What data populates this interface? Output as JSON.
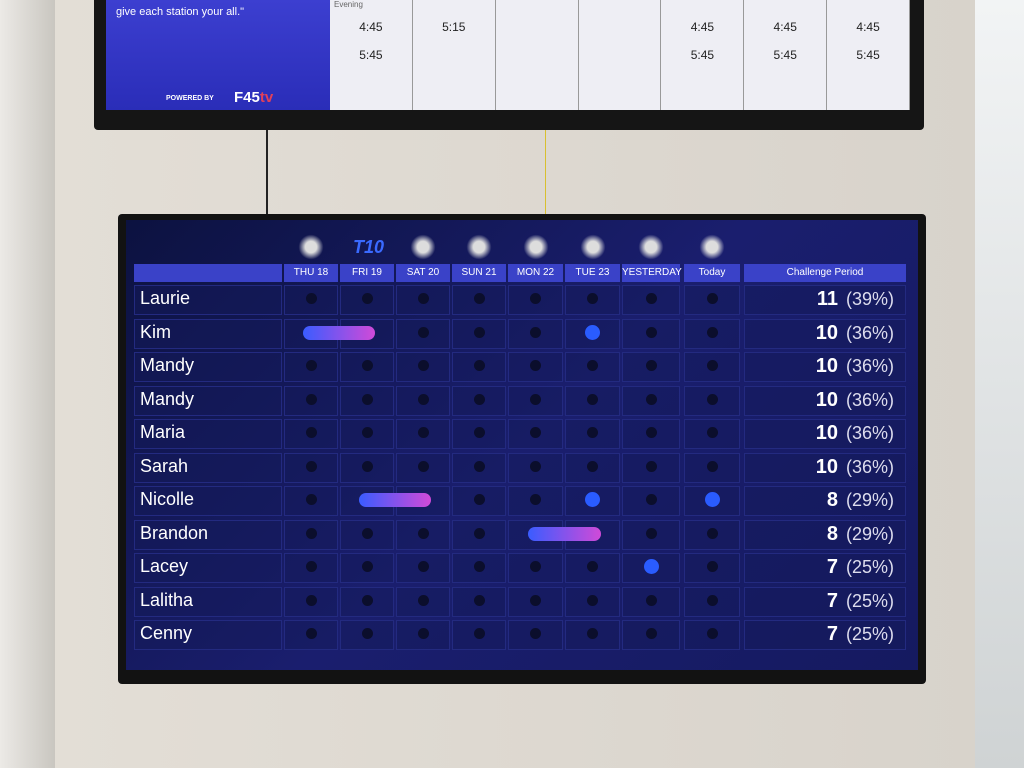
{
  "top_tv": {
    "quote": "give each station your all.\"",
    "powered_by": "POWERED BY",
    "logo": "F45tv",
    "evening_label": "Evening",
    "columns": [
      [
        "4:45",
        "5:45"
      ],
      [
        "5:15"
      ],
      [],
      [],
      [
        "4:45",
        "5:45"
      ],
      [
        "4:45",
        "5:45"
      ],
      [
        "4:45",
        "5:45"
      ]
    ]
  },
  "leaderboard": {
    "days": [
      {
        "label": "THU 18",
        "logo": "PISTON"
      },
      {
        "label": "FRI 19",
        "logo": "T10"
      },
      {
        "label": "SAT 20",
        "logo": "SOLAR"
      },
      {
        "label": "SUN 21",
        "logo": "LIONS"
      },
      {
        "label": "MON 22",
        "logo": "TRIPLE"
      },
      {
        "label": "TUE 23",
        "logo": "GOAT"
      },
      {
        "label": "YESTERDAY",
        "logo": "GLOBE"
      },
      {
        "label": "Today",
        "logo": "PISTON"
      }
    ],
    "challenge_header": "Challenge Period",
    "rows": [
      {
        "name": "Laurie",
        "score": "11",
        "pct": "(39%)",
        "days": [
          0,
          0,
          0,
          0,
          0,
          0,
          0,
          0
        ]
      },
      {
        "name": "Kim",
        "score": "10",
        "pct": "(36%)",
        "days": [
          1,
          1,
          0,
          0,
          0,
          1,
          0,
          0
        ]
      },
      {
        "name": "Mandy",
        "score": "10",
        "pct": "(36%)",
        "days": [
          0,
          0,
          0,
          0,
          0,
          0,
          0,
          0
        ]
      },
      {
        "name": "Mandy",
        "score": "10",
        "pct": "(36%)",
        "days": [
          0,
          0,
          0,
          0,
          0,
          0,
          0,
          0
        ]
      },
      {
        "name": "Maria",
        "score": "10",
        "pct": "(36%)",
        "days": [
          0,
          0,
          0,
          0,
          0,
          0,
          0,
          0
        ]
      },
      {
        "name": "Sarah",
        "score": "10",
        "pct": "(36%)",
        "days": [
          0,
          0,
          0,
          0,
          0,
          0,
          0,
          0
        ]
      },
      {
        "name": "Nicolle",
        "score": "8",
        "pct": "(29%)",
        "days": [
          0,
          1,
          1,
          0,
          0,
          1,
          0,
          1
        ]
      },
      {
        "name": "Brandon",
        "score": "8",
        "pct": "(29%)",
        "days": [
          0,
          0,
          0,
          0,
          1,
          1,
          0,
          0
        ]
      },
      {
        "name": "Lacey",
        "score": "7",
        "pct": "(25%)",
        "days": [
          0,
          0,
          0,
          0,
          0,
          0,
          1,
          0
        ]
      },
      {
        "name": "Lalitha",
        "score": "7",
        "pct": "(25%)",
        "days": [
          0,
          0,
          0,
          0,
          0,
          0,
          0,
          0
        ]
      },
      {
        "name": "Cenny",
        "score": "7",
        "pct": "(25%)",
        "days": [
          0,
          0,
          0,
          0,
          0,
          0,
          0,
          0
        ]
      }
    ],
    "colors": {
      "active": "#2a5cff",
      "bar_end": "#d04ad8",
      "header": "#3a42c8"
    }
  }
}
